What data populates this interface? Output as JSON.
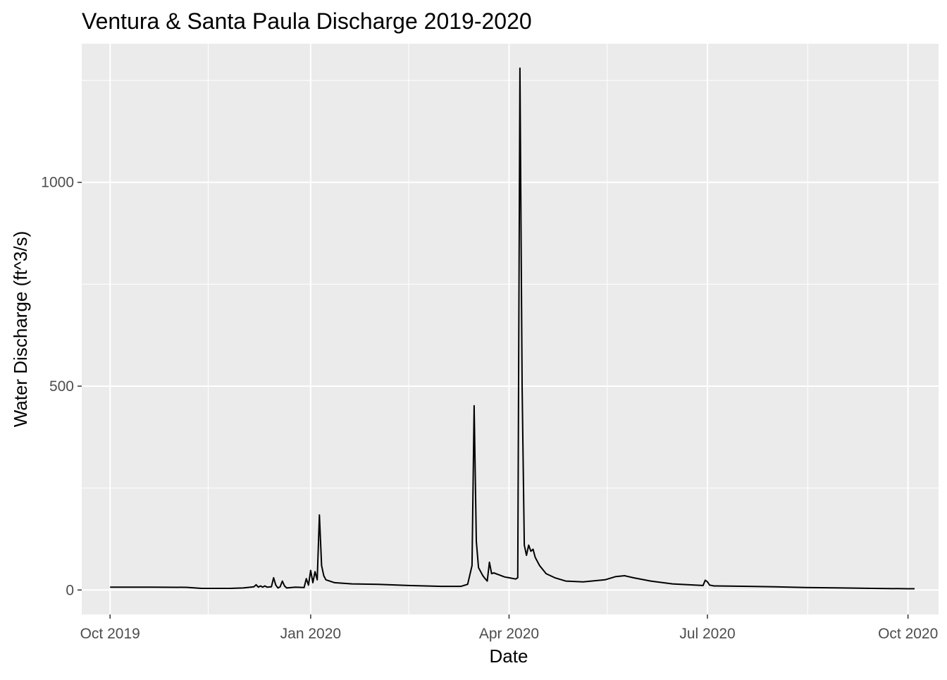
{
  "chart_data": {
    "type": "line",
    "title": "Ventura & Santa Paula Discharge 2019-2020",
    "xlabel": "Date",
    "ylabel": "Water Discharge (ft^3/s)",
    "x_range": [
      "2019-09-18",
      "2020-10-15"
    ],
    "ylim": [
      -60,
      1340
    ],
    "x_ticks": [
      {
        "date": "2019-10-01",
        "label": "Oct 2019"
      },
      {
        "date": "2020-01-01",
        "label": "Jan 2020"
      },
      {
        "date": "2020-04-01",
        "label": "Apr 2020"
      },
      {
        "date": "2020-07-01",
        "label": "Jul 2020"
      },
      {
        "date": "2020-10-01",
        "label": "Oct 2020"
      }
    ],
    "x_minor_ticks": [
      "2019-11-15",
      "2020-02-15",
      "2020-05-16",
      "2020-08-16"
    ],
    "y_ticks": [
      0,
      500,
      1000
    ],
    "y_minor_ticks": [
      250,
      750,
      1250
    ],
    "grid": true,
    "colors": {
      "panel": "#EBEBEB",
      "grid": "#FFFFFF",
      "line": "#000000",
      "axis_text": "#4D4D4D",
      "title": "#000000"
    },
    "series": [
      {
        "points": [
          [
            "2019-10-01",
            7
          ],
          [
            "2019-10-20",
            7
          ],
          [
            "2019-11-05",
            6.5
          ],
          [
            "2019-11-12",
            4
          ],
          [
            "2019-11-25",
            4
          ],
          [
            "2019-12-01",
            5
          ],
          [
            "2019-12-06",
            8
          ],
          [
            "2019-12-07",
            13
          ],
          [
            "2019-12-08",
            7
          ],
          [
            "2019-12-09",
            10
          ],
          [
            "2019-12-10",
            7
          ],
          [
            "2019-12-11",
            10
          ],
          [
            "2019-12-12",
            7
          ],
          [
            "2019-12-14",
            8
          ],
          [
            "2019-12-15",
            30
          ],
          [
            "2019-12-16",
            12
          ],
          [
            "2019-12-17",
            5
          ],
          [
            "2019-12-18",
            8
          ],
          [
            "2019-12-19",
            22
          ],
          [
            "2019-12-20",
            10
          ],
          [
            "2019-12-21",
            5
          ],
          [
            "2019-12-25",
            7
          ],
          [
            "2019-12-29",
            6
          ],
          [
            "2019-12-30",
            28
          ],
          [
            "2019-12-31",
            12
          ],
          [
            "2020-01-01",
            48
          ],
          [
            "2020-01-02",
            18
          ],
          [
            "2020-01-03",
            45
          ],
          [
            "2020-01-04",
            25
          ],
          [
            "2020-01-05",
            184
          ],
          [
            "2020-01-06",
            60
          ],
          [
            "2020-01-07",
            35
          ],
          [
            "2020-01-08",
            25
          ],
          [
            "2020-01-12",
            18
          ],
          [
            "2020-01-20",
            15
          ],
          [
            "2020-02-01",
            14
          ],
          [
            "2020-02-15",
            11
          ],
          [
            "2020-03-01",
            9
          ],
          [
            "2020-03-10",
            9
          ],
          [
            "2020-03-13",
            14
          ],
          [
            "2020-03-15",
            60
          ],
          [
            "2020-03-16",
            452
          ],
          [
            "2020-03-17",
            120
          ],
          [
            "2020-03-18",
            55
          ],
          [
            "2020-03-19",
            45
          ],
          [
            "2020-03-20",
            35
          ],
          [
            "2020-03-21",
            28
          ],
          [
            "2020-03-22",
            22
          ],
          [
            "2020-03-23",
            68
          ],
          [
            "2020-03-24",
            40
          ],
          [
            "2020-03-25",
            42
          ],
          [
            "2020-03-27",
            38
          ],
          [
            "2020-03-30",
            32
          ],
          [
            "2020-04-01",
            30
          ],
          [
            "2020-04-04",
            27
          ],
          [
            "2020-04-05",
            30
          ],
          [
            "2020-04-06",
            1280
          ],
          [
            "2020-04-07",
            500
          ],
          [
            "2020-04-08",
            110
          ],
          [
            "2020-04-09",
            85
          ],
          [
            "2020-04-10",
            110
          ],
          [
            "2020-04-11",
            95
          ],
          [
            "2020-04-12",
            100
          ],
          [
            "2020-04-13",
            80
          ],
          [
            "2020-04-15",
            60
          ],
          [
            "2020-04-18",
            40
          ],
          [
            "2020-04-22",
            30
          ],
          [
            "2020-04-27",
            22
          ],
          [
            "2020-05-05",
            20
          ],
          [
            "2020-05-15",
            25
          ],
          [
            "2020-05-20",
            33
          ],
          [
            "2020-05-24",
            35
          ],
          [
            "2020-05-28",
            30
          ],
          [
            "2020-06-05",
            22
          ],
          [
            "2020-06-15",
            15
          ],
          [
            "2020-06-25",
            12
          ],
          [
            "2020-06-29",
            11
          ],
          [
            "2020-06-30",
            24
          ],
          [
            "2020-07-01",
            20
          ],
          [
            "2020-07-02",
            12
          ],
          [
            "2020-07-04",
            10
          ],
          [
            "2020-07-20",
            9
          ],
          [
            "2020-08-01",
            8
          ],
          [
            "2020-08-15",
            6
          ],
          [
            "2020-09-01",
            5
          ],
          [
            "2020-09-15",
            4
          ],
          [
            "2020-10-01",
            3
          ],
          [
            "2020-10-04",
            3
          ]
        ]
      }
    ]
  }
}
